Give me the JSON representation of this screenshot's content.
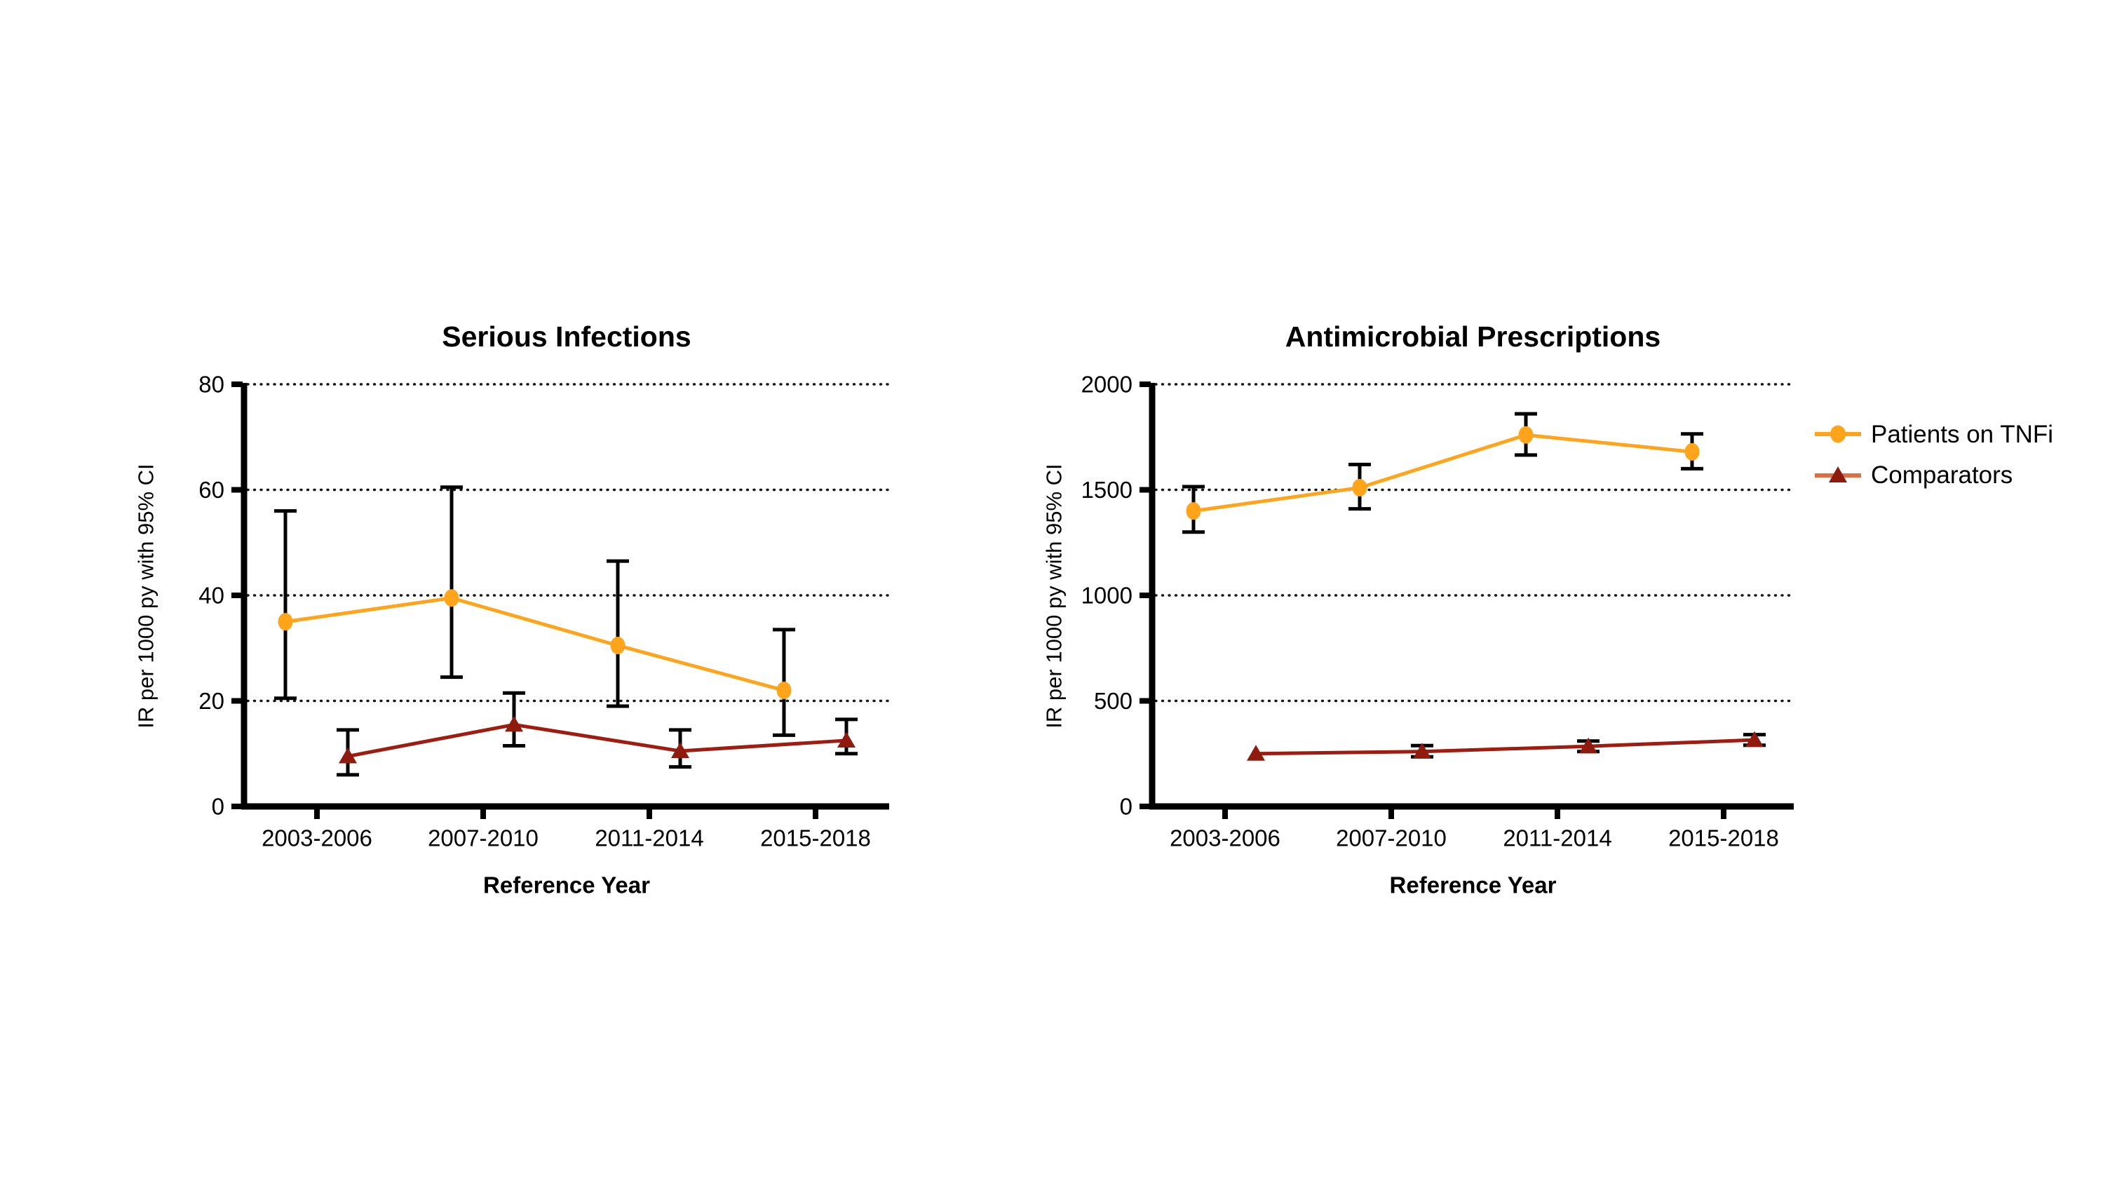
{
  "figure": {
    "background": "#ffffff",
    "text_color": "#000000",
    "axis_color": "#000000",
    "grid_color": "#161616",
    "error_bar_color": "#000000"
  },
  "legend": {
    "position": "top-right",
    "entries": [
      {
        "label": "Patients on TNFi",
        "marker": "circle",
        "marker_color": "#FFA41B",
        "line_color": "#FFA41B"
      },
      {
        "label": "Comparators",
        "marker": "triangle",
        "marker_color": "#8E1B0E",
        "line_color": "#E06E45"
      }
    ]
  },
  "chart_data": [
    {
      "type": "line",
      "title": "Serious Infections",
      "xlabel": "Reference Year",
      "ylabel": "IR per 1000 py with 95% CI",
      "categories": [
        "2003-2006",
        "2007-2010",
        "2011-2014",
        "2015-2018"
      ],
      "ylim": [
        0,
        80
      ],
      "yticks": [
        0,
        20,
        40,
        60,
        80
      ],
      "grid": "dotted-horizontal",
      "legend_position": "none",
      "series": [
        {
          "name": "Patients on TNFi",
          "marker": "circle",
          "color": "#FFA41B",
          "line_color": "#FFA41B",
          "values": [
            35,
            39.5,
            30.5,
            22
          ],
          "ci_low": [
            20.5,
            24.5,
            19,
            13.5
          ],
          "ci_high": [
            56,
            60.5,
            46.5,
            33.5
          ]
        },
        {
          "name": "Comparators",
          "marker": "triangle",
          "color": "#8E1B0E",
          "line_color": "#9E1C10",
          "values": [
            9.5,
            15.5,
            10.5,
            12.5
          ],
          "ci_low": [
            6,
            11.5,
            7.5,
            10
          ],
          "ci_high": [
            14.5,
            21.5,
            14.5,
            16.5
          ]
        }
      ]
    },
    {
      "type": "line",
      "title": "Antimicrobial Prescriptions",
      "xlabel": "Reference Year",
      "ylabel": "IR per 1000 py with 95% CI",
      "categories": [
        "2003-2006",
        "2007-2010",
        "2011-2014",
        "2015-2018"
      ],
      "ylim": [
        0,
        2000
      ],
      "yticks": [
        0,
        500,
        1000,
        1500,
        2000
      ],
      "grid": "dotted-horizontal",
      "legend_position": "top-right",
      "series": [
        {
          "name": "Patients on TNFi",
          "marker": "circle",
          "color": "#FFA41B",
          "line_color": "#FFA41B",
          "values": [
            1400,
            1510,
            1760,
            1680
          ],
          "ci_low": [
            1300,
            1410,
            1665,
            1600
          ],
          "ci_high": [
            1515,
            1620,
            1860,
            1765
          ]
        },
        {
          "name": "Comparators",
          "marker": "triangle",
          "color": "#8E1B0E",
          "line_color": "#9E1C10",
          "values": [
            250,
            260,
            285,
            315
          ],
          "ci_low": [
            244,
            235,
            260,
            290
          ],
          "ci_high": [
            256,
            288,
            310,
            340
          ]
        }
      ]
    }
  ]
}
